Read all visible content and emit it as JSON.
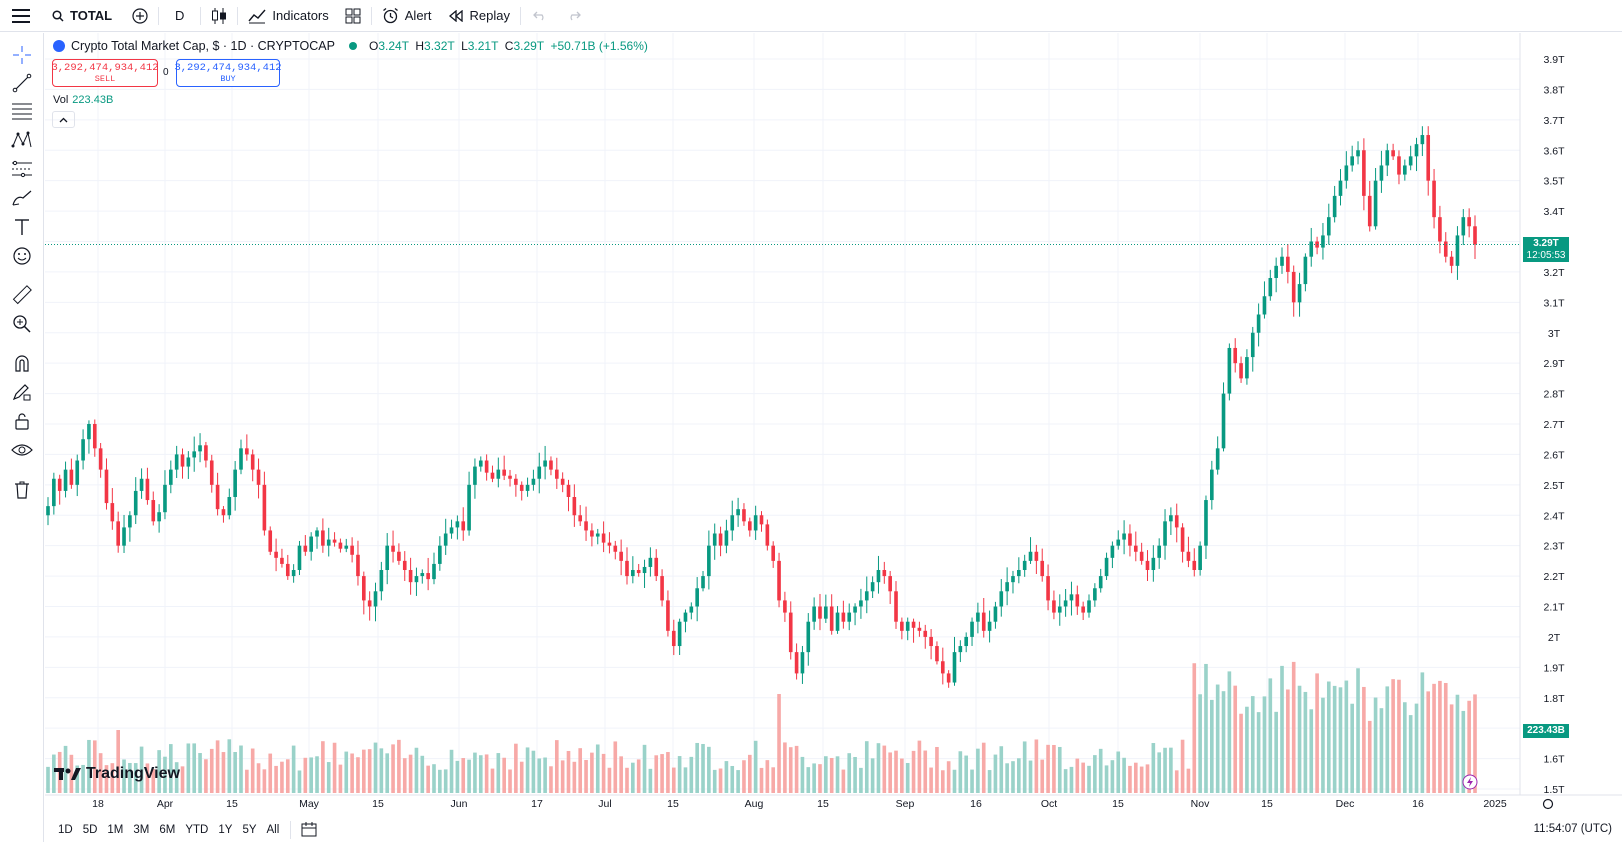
{
  "toolbar": {
    "menu_icon": "hamburger-icon",
    "symbol": "TOTAL",
    "interval": "D",
    "indicators": "Indicators",
    "alert": "Alert",
    "replay": "Replay"
  },
  "legend": {
    "title": "Crypto Total Market Cap, $ · 1D · CRYPTOCAP",
    "o_label": "O",
    "o_value": "3.24T",
    "h_label": "H",
    "h_value": "3.32T",
    "l_label": "L",
    "l_value": "3.21T",
    "c_label": "C",
    "c_value": "3.29T",
    "change": "+50.71B (+1.56%)",
    "sell_price": "3,292,474,934,412",
    "sell_label": "SELL",
    "buy_price": "3,292,474,934,412",
    "buy_label": "BUY",
    "spread": "0",
    "vol_label": "Vol",
    "vol_value": "223.43B"
  },
  "watermark": "TradingView",
  "price_tag": {
    "price": "3.29T",
    "countdown": "12:05:53"
  },
  "volume_tag": "223.43B",
  "periods": [
    "1D",
    "5D",
    "1M",
    "3M",
    "6M",
    "YTD",
    "1Y",
    "5Y",
    "All"
  ],
  "clock": "11:54:07 (UTC)",
  "colors": {
    "up": "#089981",
    "down": "#f23645",
    "up_vol": "#9ad2c9",
    "down_vol": "#f7a9a7",
    "accent": "#2962ff"
  },
  "chart_data": {
    "type": "candlestick",
    "y_ticks": [
      "3.9T",
      "3.8T",
      "3.7T",
      "3.6T",
      "3.5T",
      "3.4T",
      "3.3T",
      "3.2T",
      "3.1T",
      "3T",
      "2.9T",
      "2.8T",
      "2.7T",
      "2.6T",
      "2.5T",
      "2.4T",
      "2.3T",
      "2.2T",
      "2.1T",
      "2T",
      "1.9T",
      "1.8T",
      "1.7T",
      "1.6T",
      "1.5T"
    ],
    "x_ticks": [
      "18",
      "Apr",
      "15",
      "May",
      "15",
      "Jun",
      "17",
      "Jul",
      "15",
      "Aug",
      "15",
      "Sep",
      "16",
      "Oct",
      "15",
      "Nov",
      "15",
      "Dec",
      "16",
      "2025"
    ],
    "ylim_trillions": [
      1.5,
      3.9
    ],
    "current_price_trillions": 3.29,
    "close_path_trillions": [
      [
        2.43,
        2.52,
        2.48,
        2.55,
        2.5,
        2.58,
        2.65,
        2.7,
        2.62,
        2.55,
        2.44,
        2.38,
        2.3,
        2.36,
        2.4,
        2.48,
        2.52,
        2.45,
        2.38,
        2.41,
        2.5,
        2.55,
        2.6,
        2.56,
        2.59,
        2.61,
        2.63,
        2.58,
        2.5,
        2.42,
        2.4,
        2.46,
        2.55,
        2.62,
        2.6,
        2.55,
        2.5,
        2.35,
        2.28,
        2.26,
        2.24,
        2.2,
        2.22,
        2.3,
        2.28,
        2.33,
        2.35,
        2.3,
        2.32,
        2.31,
        2.29,
        2.3,
        2.27,
        2.2,
        2.12,
        2.1,
        2.15,
        2.22,
        2.3,
        2.28,
        2.25,
        2.22,
        2.18,
        2.2,
        2.21,
        2.19,
        2.24,
        2.3,
        2.34,
        2.36,
        2.38,
        2.35,
        2.5,
        2.56,
        2.58,
        2.54,
        2.52,
        2.55,
        2.53,
        2.52,
        2.5,
        2.48,
        2.5,
        2.52,
        2.56,
        2.58,
        2.55,
        2.52,
        2.5,
        2.46,
        2.4,
        2.38,
        2.35,
        2.33,
        2.34,
        2.31,
        2.3,
        2.28,
        2.25,
        2.2,
        2.22,
        2.21,
        2.23,
        2.26,
        2.2,
        2.12,
        2.02,
        1.97,
        2.05,
        2.08,
        2.1,
        2.16,
        2.2,
        2.3,
        2.34,
        2.3,
        2.35,
        2.4,
        2.42,
        2.38,
        2.35,
        2.4,
        2.37,
        2.3,
        2.25,
        2.12,
        2.08,
        1.95,
        1.88,
        1.95,
        2.05,
        2.1,
        2.06,
        2.1,
        2.02,
        2.08,
        2.05,
        2.08,
        2.1,
        2.12,
        2.15,
        2.18,
        2.22,
        2.2,
        2.15,
        2.05,
        2.02,
        2.05,
        2.03,
        2.02,
        2.0,
        1.97,
        1.92,
        1.88,
        1.85,
        1.95,
        1.97,
        2.0,
        2.05,
        2.08,
        2.02,
        2.05,
        2.1,
        2.15,
        2.18,
        2.2,
        2.22,
        2.25,
        2.28,
        2.25,
        2.2,
        2.12,
        2.08,
        2.1,
        2.12,
        2.14,
        2.1,
        2.08,
        2.12,
        2.16,
        2.2,
        2.26,
        2.3,
        2.32,
        2.34,
        2.3,
        2.28,
        2.25,
        2.22,
        2.26,
        2.3,
        2.38,
        2.4,
        2.36,
        2.28,
        2.25,
        2.22,
        2.3,
        2.45,
        2.55,
        2.62,
        2.8,
        2.95,
        2.9,
        2.85,
        2.92,
        3.0,
        3.06,
        3.12,
        3.18,
        3.22,
        3.25,
        3.2,
        3.1,
        3.16,
        3.25,
        3.3,
        3.28,
        3.32,
        3.38,
        3.45,
        3.5,
        3.55,
        3.58,
        3.6,
        3.45,
        3.35,
        3.5,
        3.55,
        3.6,
        3.58,
        3.52,
        3.55,
        3.58,
        3.62,
        3.65,
        3.5,
        3.38,
        3.3,
        3.25,
        3.22,
        3.32,
        3.38,
        3.35,
        3.29
      ]
    ]
  }
}
